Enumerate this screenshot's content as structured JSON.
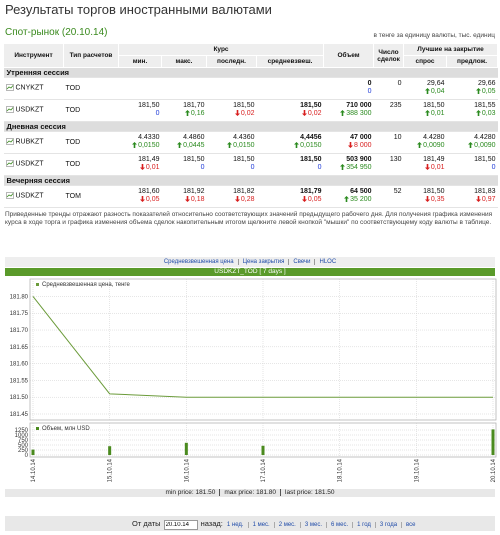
{
  "header": {
    "title": "Результаты торгов иностранными валютами",
    "subtitle": "Спот-рынок (20.10.14)",
    "units": "в тенге за единицу валюты, тыс. единиц"
  },
  "table": {
    "head": {
      "instrument": "Инструмент",
      "settlement": "Тип расчетов",
      "rate": "Курс",
      "volume": "Объем",
      "deals": "Число сделок",
      "best": "Лучшие на закрытие",
      "rate_cols": [
        "мин.",
        "макс.",
        "последн.",
        "средневзвеш."
      ],
      "best_cols": [
        "спрос",
        "предлож."
      ]
    },
    "sessions": [
      {
        "name": "Утренняя сессия",
        "rows": [
          {
            "instrument": "CNYKZT",
            "settlement": "TOD",
            "cells": [
              null,
              null,
              null,
              null,
              {
                "value": "0",
                "change": "0"
              },
              {
                "value": "0"
              },
              {
                "value": "29,64",
                "change": "0,04",
                "trend": "up"
              },
              {
                "value": "29,66",
                "change": "0,05",
                "trend": "up"
              }
            ]
          },
          {
            "instrument": "USDKZT",
            "settlement": "TOD",
            "cells": [
              {
                "value": "181,50",
                "change": "0"
              },
              {
                "value": "181,70",
                "change": "0,16",
                "trend": "up"
              },
              {
                "value": "181,50",
                "change": "0,02",
                "trend": "down"
              },
              {
                "value": "181,50",
                "change": "0,02",
                "trend": "down"
              },
              {
                "value": "710 000",
                "change": "388 300",
                "trend": "up"
              },
              {
                "value": "235"
              },
              {
                "value": "181,50",
                "change": "0,01",
                "trend": "up"
              },
              {
                "value": "181,55",
                "change": "0,03",
                "trend": "up"
              }
            ]
          }
        ]
      },
      {
        "name": "Дневная сессия",
        "rows": [
          {
            "instrument": "RUBKZT",
            "settlement": "TOD",
            "cells": [
              {
                "value": "4.4330",
                "change": "0,0150",
                "trend": "up"
              },
              {
                "value": "4.4860",
                "change": "0,0445",
                "trend": "up"
              },
              {
                "value": "4.4360",
                "change": "0,0150",
                "trend": "up"
              },
              {
                "value": "4,4456",
                "change": "0,0150",
                "trend": "up"
              },
              {
                "value": "47 000",
                "change": "8 000",
                "trend": "down"
              },
              {
                "value": "10"
              },
              {
                "value": "4.4280",
                "change": "0,0090",
                "trend": "up"
              },
              {
                "value": "4.4280",
                "change": "0,0090",
                "trend": "up"
              }
            ]
          },
          {
            "instrument": "USDKZT",
            "settlement": "TOD",
            "cells": [
              {
                "value": "181,49",
                "change": "0,01",
                "trend": "down"
              },
              {
                "value": "181,50",
                "change": "0"
              },
              {
                "value": "181,50",
                "change": "0"
              },
              {
                "value": "181,50",
                "change": "0"
              },
              {
                "value": "503 900",
                "change": "354 950",
                "trend": "up"
              },
              {
                "value": "130"
              },
              {
                "value": "181,49",
                "change": "0,01",
                "trend": "down"
              },
              {
                "value": "181,50",
                "change": "0"
              }
            ]
          }
        ]
      },
      {
        "name": "Вечерняя сессия",
        "rows": [
          {
            "instrument": "USDKZT",
            "settlement": "TOM",
            "cells": [
              {
                "value": "181,60",
                "change": "0,05",
                "trend": "down"
              },
              {
                "value": "181,92",
                "change": "0,18",
                "trend": "down"
              },
              {
                "value": "181,82",
                "change": "0,28",
                "trend": "down"
              },
              {
                "value": "181,79",
                "change": "0,05",
                "trend": "down"
              },
              {
                "value": "64 500",
                "change": "35 200",
                "trend": "up"
              },
              {
                "value": "52"
              },
              {
                "value": "181,50",
                "change": "0,35",
                "trend": "down"
              },
              {
                "value": "181,83",
                "change": "0,97",
                "trend": "down"
              }
            ]
          }
        ]
      }
    ]
  },
  "note": "Приведенные тренды отражают разность показателей относительно соответствующих значений предыдущего рабочего дня. Для получения графика изменения курса в ходе торга и графика изменения объема сделок накопительным итогом щелкните левой кнопкой \"мышки\" по соответствующему коду валюты в таблице.",
  "chart_tabs": [
    "Средневзвешенная цена",
    "Цена закрытия",
    "Свечи",
    "HLOC"
  ],
  "chart_data": [
    {
      "type": "line",
      "title": "USDKZT_TOD [ 7 days ]",
      "x": [
        "14.10.14",
        "15.10.14",
        "16.10.14",
        "17.10.14",
        "20.10.14"
      ],
      "xticks": [
        "14.10.14",
        "15.10.14",
        "16.10.14",
        "17.10.14",
        "18.10.14",
        "19.10.14",
        "20.10.14"
      ],
      "series": [
        {
          "name": "Средневзвешенная цена, тенге",
          "color": "#6b9b3a",
          "values": [
            181.8,
            181.51,
            181.5,
            181.5,
            181.5
          ]
        }
      ],
      "ylim": [
        181.45,
        181.84
      ],
      "yticks": [
        181.45,
        {
          "value": 181.5,
          "label": "181.50"
        },
        181.55,
        {
          "value": 181.6,
          "label": "181.60"
        },
        181.65,
        {
          "value": 181.7,
          "label": "181.70"
        },
        181.75,
        {
          "value": 181.8,
          "label": "181.80"
        }
      ],
      "grid": true
    },
    {
      "type": "bar",
      "x": [
        "14.10.14",
        "15.10.14",
        "16.10.14",
        "17.10.14",
        "20.10.14"
      ],
      "xticks": [
        "14.10.14",
        "15.10.14",
        "16.10.14",
        "17.10.14",
        "18.10.14",
        "19.10.14",
        "20.10.14"
      ],
      "series": [
        {
          "name": "Объем, млн USD",
          "color": "#4a8a1e",
          "values": [
            270,
            440,
            610,
            460,
            1280
          ]
        }
      ],
      "ylim": [
        0,
        1400
      ],
      "yticks": [
        0,
        250,
        500,
        750,
        1000,
        1250
      ],
      "grid": true
    }
  ],
  "summary": [
    "min price: 181.50",
    "max price: 181.80",
    "last price: 181.50"
  ],
  "nav": {
    "from_label": "От даты",
    "date": "20.10.14",
    "back_label": "назад:",
    "links": [
      "1 нед.",
      "1 мес.",
      "2 мес.",
      "3 мес.",
      "6 мес.",
      "1 год",
      "3 года",
      "все"
    ]
  }
}
